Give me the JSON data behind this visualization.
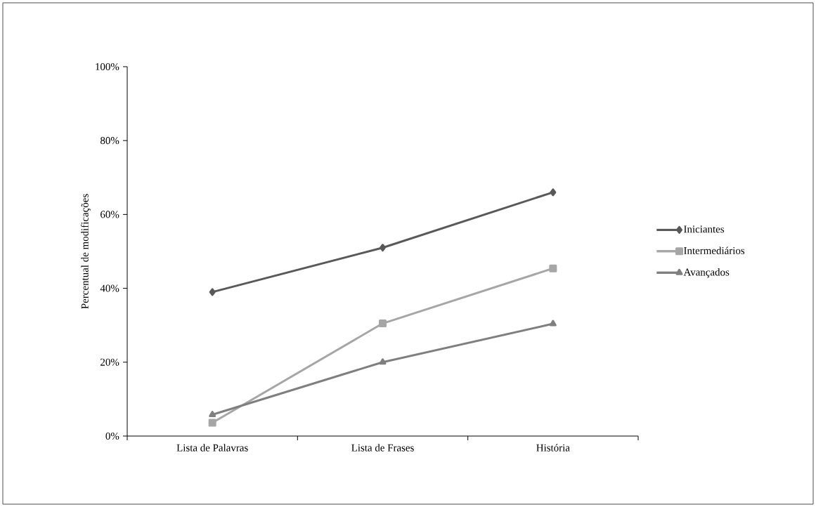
{
  "chart_data": {
    "type": "line",
    "ylabel": "Percentual de modificações",
    "categories": [
      "Lista de Palavras",
      "Lista de Frases",
      "História"
    ],
    "series": [
      {
        "name": "Iniciantes",
        "color": "#595959",
        "marker": "diamond",
        "values": [
          39,
          51,
          66
        ]
      },
      {
        "name": "Intermediários",
        "color": "#a6a6a6",
        "marker": "square",
        "values": [
          3.6,
          30.5,
          45.4
        ]
      },
      {
        "name": "Avançados",
        "color": "#7f7f7f",
        "marker": "triangle",
        "values": [
          5.8,
          20,
          30.4
        ]
      }
    ],
    "ylim": [
      0,
      100
    ],
    "yticks": [
      {
        "value": 0,
        "label": "0%"
      },
      {
        "value": 20,
        "label": "20%"
      },
      {
        "value": 40,
        "label": "40%"
      },
      {
        "value": 60,
        "label": "60%"
      },
      {
        "value": 80,
        "label": "80%"
      },
      {
        "value": 100,
        "label": "100%"
      }
    ],
    "grid": false,
    "legend": "right",
    "line_style": "solid"
  }
}
